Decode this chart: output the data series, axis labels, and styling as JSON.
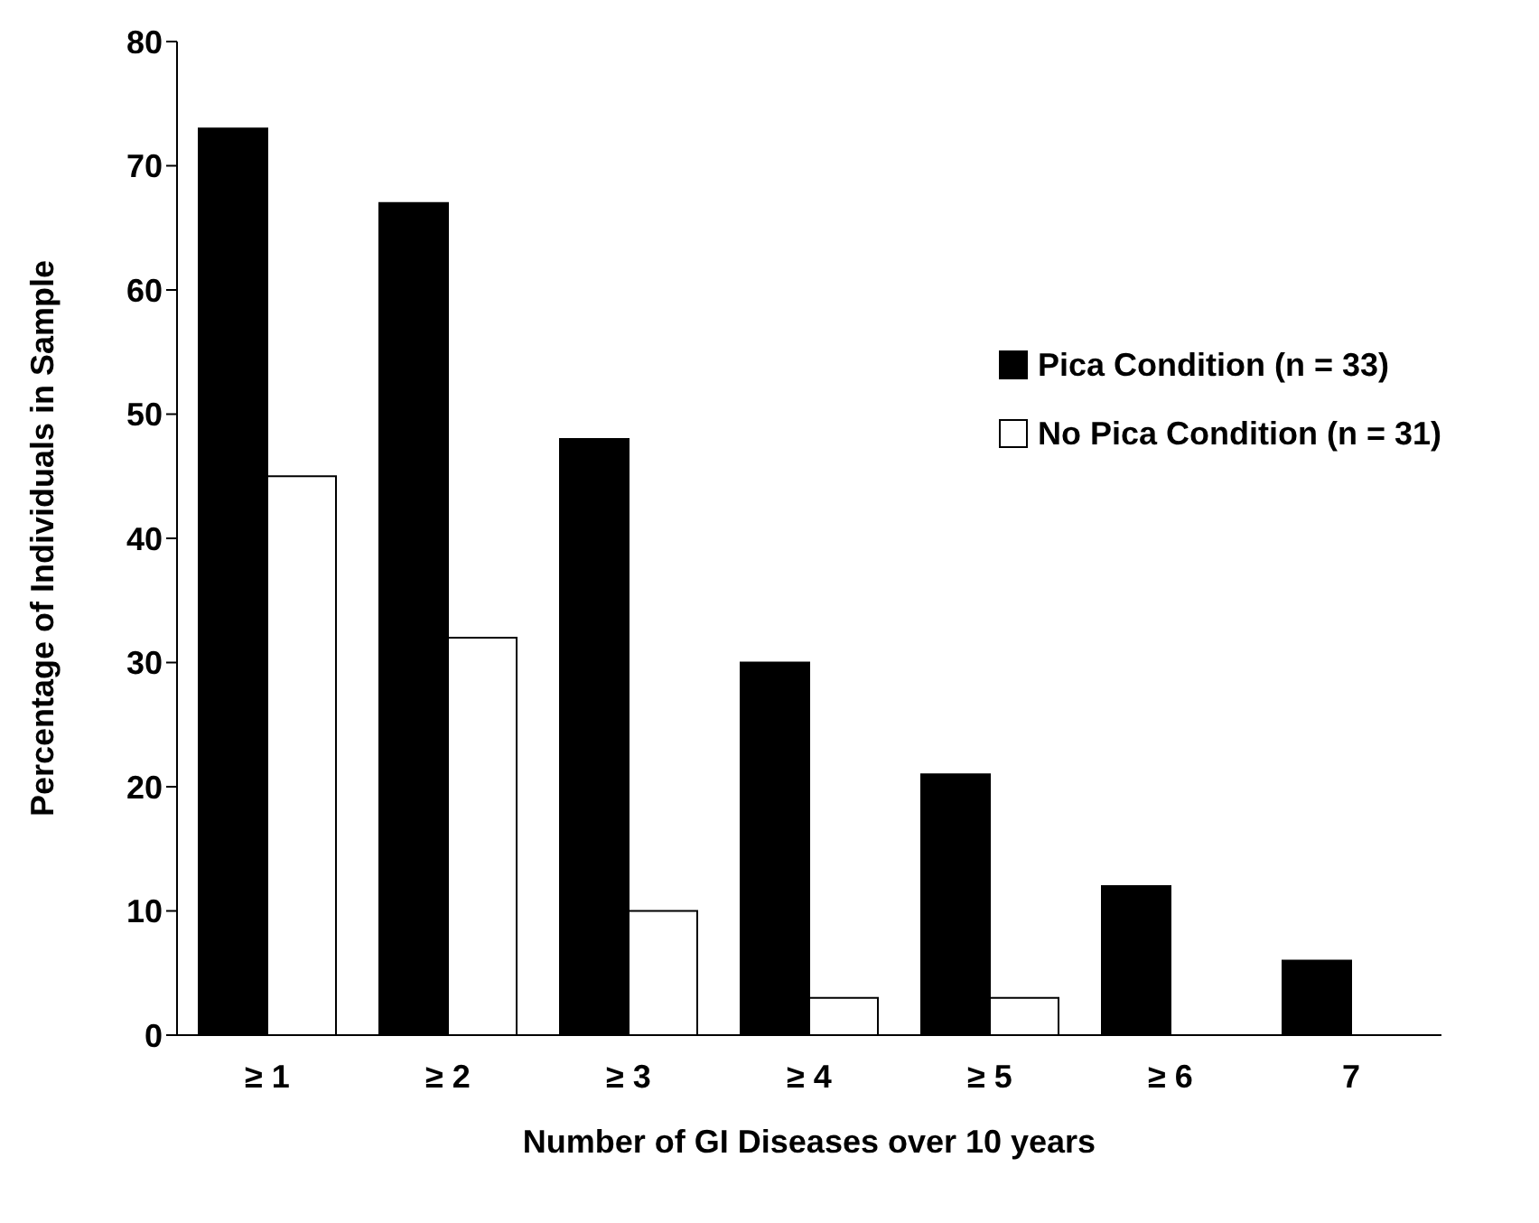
{
  "chart_data": {
    "type": "bar",
    "xlabel": "Number of GI Diseases over 10 years",
    "ylabel": "Percentage of Individuals in Sample",
    "categories": [
      "≥ 1",
      "≥ 2",
      "≥ 3",
      "≥ 4",
      "≥ 5",
      "≥ 6",
      "7"
    ],
    "series": [
      {
        "name": "Pica Condition (n = 33)",
        "color": "#000000",
        "values": [
          73,
          67,
          48,
          30,
          21,
          12,
          6
        ]
      },
      {
        "name": "No Pica Condition (n = 31)",
        "color": "#ffffff",
        "values": [
          45,
          32,
          10,
          3,
          3,
          0,
          0
        ]
      }
    ],
    "ylim": [
      0,
      80
    ],
    "yticks": [
      0,
      10,
      20,
      30,
      40,
      50,
      60,
      70,
      80
    ],
    "grid": false,
    "legend": "top right"
  }
}
